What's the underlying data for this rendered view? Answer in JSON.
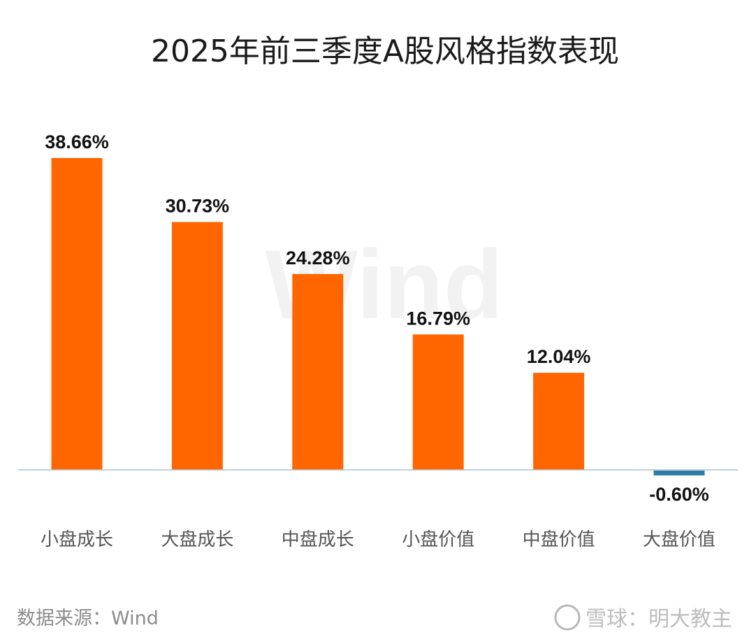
{
  "chart_data": {
    "type": "bar",
    "title": "2025年前三季度A股风格指数表现",
    "categories": [
      "小盘成长",
      "大盘成长",
      "中盘成长",
      "小盘价值",
      "中盘价值",
      "大盘价值"
    ],
    "values": [
      38.66,
      30.73,
      24.28,
      16.79,
      12.04,
      -0.6
    ],
    "value_labels": [
      "38.66%",
      "30.73%",
      "24.28%",
      "16.79%",
      "12.04%",
      "-0.60%"
    ],
    "xlabel": "",
    "ylabel": "",
    "ylim": [
      -1,
      40
    ],
    "grid": false,
    "colors": {
      "positive": "#FF6600",
      "negative": "#2E7BA6",
      "axis": "#A8C4D8"
    }
  },
  "source_note": "数据来源：Wind",
  "watermark": "Wind",
  "credit": "雪球：明大教主"
}
